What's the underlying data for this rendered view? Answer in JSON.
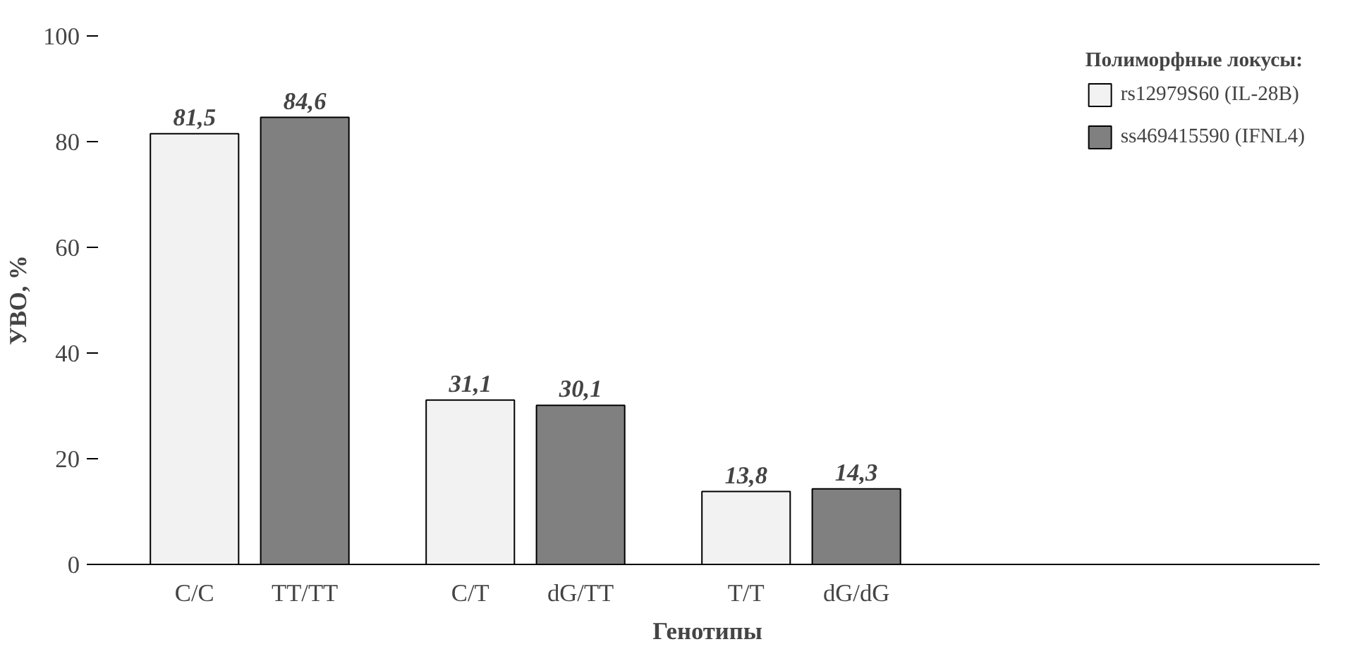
{
  "chart_data": {
    "type": "bar",
    "xlabel": "Генотипы",
    "ylabel": "УВО, %",
    "legend_title": "Полиморфные локусы:",
    "categories": [
      "C/C",
      "TT/TT",
      "C/T",
      "dG/TT",
      "T/T",
      "dG/dG"
    ],
    "series": [
      {
        "name": "rs12979S60 (IL-28B)",
        "color": "#f2f2f2",
        "values": [
          81.5,
          null,
          31.1,
          null,
          13.8,
          null
        ],
        "value_labels": [
          "81,5",
          null,
          "31,1",
          null,
          "13,8",
          null
        ]
      },
      {
        "name": "ss469415590 (IFNL4)",
        "color": "#808080",
        "values": [
          null,
          84.6,
          null,
          30.1,
          null,
          14.3
        ],
        "value_labels": [
          null,
          "84,6",
          null,
          "30,1",
          null,
          "14,3"
        ]
      }
    ],
    "ylim": [
      0,
      100
    ],
    "yticks": [
      0,
      20,
      40,
      60,
      80,
      100
    ],
    "grid": false,
    "legend": "right"
  }
}
